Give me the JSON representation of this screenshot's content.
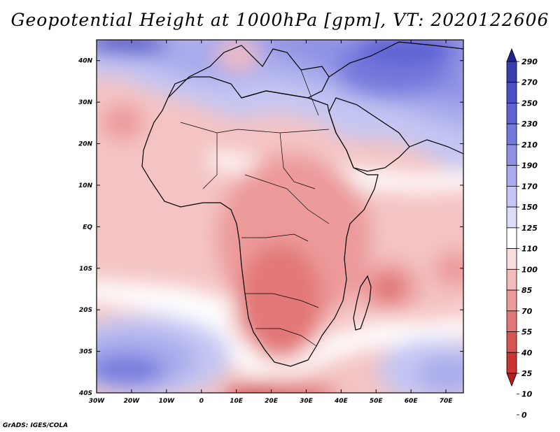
{
  "title": "Geopotential Height at 1000hPa [gpm], VT: 2020122606",
  "credit": "GrADS: IGES/COLA",
  "map": {
    "lon_ticks": [
      "30W",
      "20W",
      "10W",
      "0",
      "10E",
      "20E",
      "30E",
      "40E",
      "50E",
      "60E",
      "70E"
    ],
    "lat_ticks": [
      "40N",
      "30N",
      "20N",
      "10N",
      "EQ",
      "10S",
      "20S",
      "30S",
      "40S"
    ],
    "lon_range": [
      -30,
      75
    ],
    "lat_range": [
      -40,
      45
    ]
  },
  "colorbar": {
    "labels": [
      "290",
      "270",
      "250",
      "230",
      "210",
      "190",
      "170",
      "150",
      "125",
      "110",
      "100",
      "85",
      "70",
      "55",
      "40",
      "25",
      "10",
      "0"
    ],
    "colors": [
      "#232492",
      "#3a3db0",
      "#4a4fc6",
      "#5e63d3",
      "#7679dc",
      "#8f92e4",
      "#a9abec",
      "#c4c6f3",
      "#dcdcf8",
      "#ffffff",
      "#fadcdc",
      "#f3bcbc",
      "#ec9a9a",
      "#e27777",
      "#d85555",
      "#c93535",
      "#b21f1f"
    ]
  }
}
